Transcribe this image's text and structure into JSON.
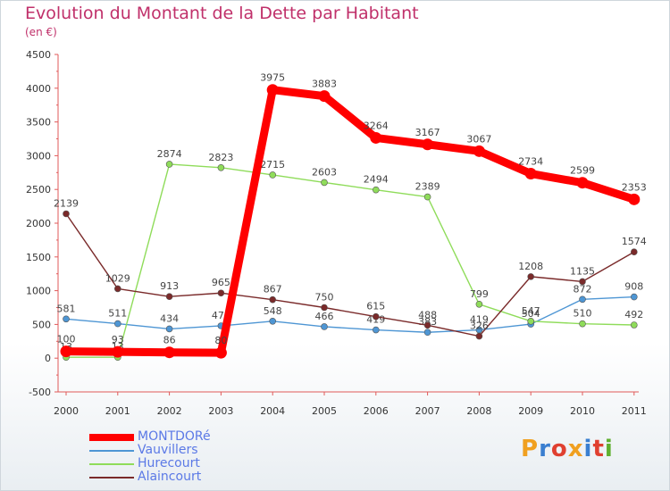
{
  "header": {
    "title": "Evolution du Montant de la Dette par Habitant",
    "subtitle": "(en €)"
  },
  "brand": {
    "letters": [
      "P",
      "r",
      "o",
      "x",
      "i",
      "t",
      "i"
    ],
    "colors": [
      "#f0a020",
      "#3a7fd0",
      "#e04030",
      "#f0a020",
      "#3a7fd0",
      "#e04030",
      "#60b030"
    ]
  },
  "chart_data": {
    "type": "line",
    "title": "Evolution du Montant de la Dette par Habitant",
    "subtitle": "(en €)",
    "xlabel": "",
    "ylabel": "",
    "x": [
      "2000",
      "2001",
      "2002",
      "2003",
      "2004",
      "2005",
      "2006",
      "2007",
      "2008",
      "2009",
      "2010",
      "2011"
    ],
    "ylim": [
      -500,
      4500
    ],
    "yticks": [
      "-500",
      "0",
      "500",
      "1000",
      "1500",
      "2000",
      "2500",
      "3000",
      "3500",
      "4000",
      "4500"
    ],
    "grid": false,
    "legend_position": "bottom-left",
    "series": [
      {
        "name": "MONTDORé",
        "color": "#ff0000",
        "emphasis": true,
        "values": [
          100,
          93,
          86,
          80,
          3975,
          3883,
          3264,
          3167,
          3067,
          2734,
          2599,
          2353
        ],
        "labels": [
          "100",
          "93",
          "86",
          "80",
          "3975",
          "3883",
          "3264",
          "3167",
          "3067",
          "2734",
          "2599",
          "2353"
        ]
      },
      {
        "name": "Vauvillers",
        "color": "#4e96d4",
        "emphasis": false,
        "values": [
          581,
          511,
          434,
          479,
          548,
          466,
          419,
          383,
          419,
          504,
          872,
          908
        ],
        "labels": [
          "581",
          "511",
          "434",
          "479",
          "548",
          "466",
          "419",
          "383",
          "419",
          "504",
          "872",
          "908"
        ]
      },
      {
        "name": "Hurecourt",
        "color": "#8fdc5a",
        "emphasis": false,
        "values": [
          13,
          13,
          2874,
          2823,
          2715,
          2603,
          2494,
          2389,
          799,
          547,
          510,
          492
        ],
        "labels": [
          "13",
          "13",
          "2874",
          "2823",
          "2715",
          "2603",
          "2494",
          "2389",
          "799",
          "547",
          "510",
          "492"
        ]
      },
      {
        "name": "Alaincourt",
        "color": "#7a2a2a",
        "emphasis": false,
        "values": [
          2139,
          1029,
          913,
          965,
          867,
          750,
          615,
          488,
          326,
          1208,
          1135,
          1574
        ],
        "labels": [
          "2139",
          "1029",
          "913",
          "965",
          "867",
          "750",
          "615",
          "488",
          "326",
          "1208",
          "1135",
          "1574"
        ]
      }
    ]
  }
}
